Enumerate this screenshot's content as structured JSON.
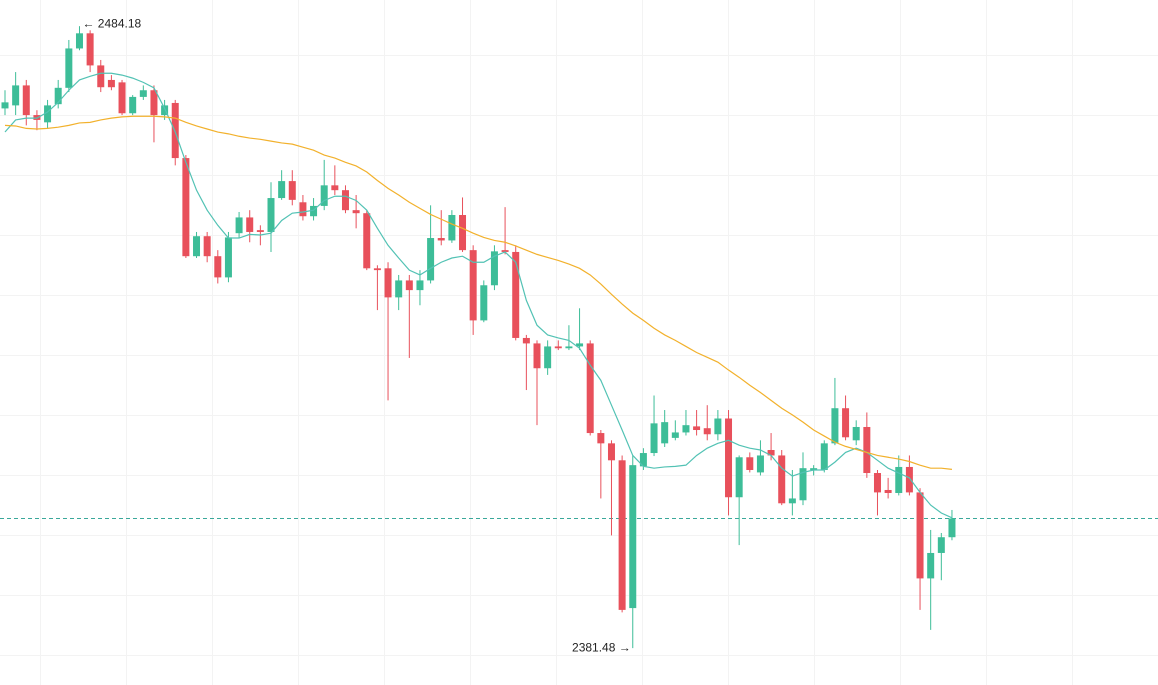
{
  "chart_data": {
    "type": "candlestick",
    "up_color": "#3dbd98",
    "down_color": "#e8505b",
    "ylim": [
      2375.4,
      2488.5
    ],
    "open": [
      2470.6,
      2471.1,
      2474.4,
      2469.5,
      2468.3,
      2471.3,
      2474.0,
      2480.5,
      2483.0,
      2477.7,
      2475.3,
      2474.9,
      2469.8,
      2472.5,
      2473.6,
      2469.5,
      2471.5,
      2462.4,
      2446.2,
      2449.5,
      2446.2,
      2442.7,
      2450.0,
      2452.6,
      2450.5,
      2450.2,
      2455.8,
      2458.6,
      2455.1,
      2452.8,
      2454.5,
      2457.9,
      2457.1,
      2453.8,
      2453.3,
      2444.2,
      2444.2,
      2439.4,
      2442.2,
      2440.6,
      2442.2,
      2449.2,
      2448.8,
      2453.0,
      2447.2,
      2435.6,
      2441.4,
      2447.2,
      2446.9,
      2432.7,
      2431.8,
      2427.7,
      2431.3,
      2431.0,
      2431.3,
      2431.8,
      2417.0,
      2415.3,
      2412.5,
      2388.1,
      2411.5,
      2413.7,
      2415.3,
      2416.2,
      2417.1,
      2418.1,
      2417.8,
      2416.8,
      2419.4,
      2406.4,
      2413.0,
      2410.5,
      2414.2,
      2413.3,
      2405.4,
      2405.9,
      2410.9,
      2410.9,
      2415.3,
      2421.1,
      2415.8,
      2418.0,
      2410.4,
      2407.6,
      2407.1,
      2411.4,
      2407.2,
      2393.0,
      2397.2,
      2399.8
    ],
    "high": [
      2473.6,
      2476.6,
      2475.3,
      2470.3,
      2472.0,
      2475.3,
      2481.9,
      2484.18,
      2483.5,
      2478.6,
      2476.1,
      2475.3,
      2472.8,
      2474.4,
      2474.4,
      2472.0,
      2472.0,
      2462.9,
      2450.2,
      2450.2,
      2447.2,
      2450.2,
      2453.5,
      2453.8,
      2451.3,
      2458.4,
      2460.4,
      2460.4,
      2456.3,
      2455.8,
      2462.1,
      2461.2,
      2457.9,
      2456.3,
      2453.8,
      2444.7,
      2445.2,
      2443.1,
      2443.1,
      2443.9,
      2454.6,
      2453.8,
      2453.8,
      2455.9,
      2448.0,
      2442.2,
      2448.0,
      2454.3,
      2448.0,
      2433.2,
      2432.3,
      2432.3,
      2432.3,
      2434.8,
      2437.6,
      2432.3,
      2417.5,
      2415.8,
      2413.3,
      2413.3,
      2414.5,
      2423.2,
      2420.8,
      2419.1,
      2420.8,
      2420.8,
      2421.6,
      2420.8,
      2420.8,
      2413.3,
      2413.8,
      2415.8,
      2417.0,
      2414.2,
      2410.9,
      2413.8,
      2411.7,
      2415.8,
      2426.1,
      2423.2,
      2419.1,
      2420.4,
      2410.9,
      2409.6,
      2413.3,
      2413.3,
      2407.9,
      2401.0,
      2400.5,
      2404.3
    ],
    "low": [
      2469.5,
      2469.5,
      2467.8,
      2467.0,
      2467.3,
      2470.6,
      2473.3,
      2480.2,
      2476.6,
      2473.3,
      2473.6,
      2469.5,
      2469.5,
      2472.0,
      2465.0,
      2468.7,
      2461.2,
      2445.9,
      2445.9,
      2445.2,
      2441.7,
      2441.9,
      2449.2,
      2448.5,
      2448.0,
      2446.9,
      2455.5,
      2454.6,
      2452.1,
      2452.1,
      2453.8,
      2456.3,
      2453.3,
      2450.8,
      2443.9,
      2437.3,
      2422.4,
      2437.3,
      2429.4,
      2438.1,
      2441.7,
      2448.0,
      2448.4,
      2446.9,
      2433.2,
      2435.3,
      2440.6,
      2446.5,
      2432.3,
      2424.1,
      2418.3,
      2426.6,
      2430.7,
      2430.7,
      2430.7,
      2416.6,
      2406.2,
      2400.1,
      2387.4,
      2381.48,
      2410.9,
      2413.2,
      2414.7,
      2415.8,
      2416.6,
      2416.6,
      2415.8,
      2415.8,
      2403.4,
      2398.5,
      2410.5,
      2410.0,
      2412.5,
      2405.1,
      2403.4,
      2405.1,
      2410.0,
      2410.5,
      2415.0,
      2415.8,
      2415.0,
      2409.6,
      2403.4,
      2406.2,
      2406.7,
      2406.7,
      2387.8,
      2384.5,
      2392.7,
      2399.3
    ],
    "close": [
      2471.6,
      2474.4,
      2469.5,
      2468.7,
      2471.1,
      2474.0,
      2480.5,
      2483.0,
      2477.7,
      2474.1,
      2474.1,
      2469.8,
      2472.5,
      2473.6,
      2469.5,
      2471.1,
      2462.4,
      2446.2,
      2449.5,
      2446.2,
      2442.7,
      2449.3,
      2452.6,
      2450.2,
      2450.2,
      2455.8,
      2458.6,
      2455.5,
      2452.8,
      2454.5,
      2457.9,
      2457.1,
      2453.8,
      2453.3,
      2444.2,
      2443.9,
      2439.4,
      2442.2,
      2440.6,
      2442.2,
      2449.2,
      2448.8,
      2453.0,
      2447.2,
      2435.6,
      2441.4,
      2447.0,
      2446.9,
      2432.7,
      2431.8,
      2427.7,
      2431.3,
      2431.0,
      2431.3,
      2431.8,
      2417.0,
      2415.3,
      2412.5,
      2387.8,
      2411.7,
      2413.7,
      2418.6,
      2418.8,
      2417.1,
      2418.3,
      2417.5,
      2416.8,
      2419.4,
      2406.4,
      2413.0,
      2410.9,
      2413.3,
      2413.3,
      2405.4,
      2406.2,
      2411.2,
      2411.2,
      2415.3,
      2421.1,
      2416.3,
      2418.0,
      2410.4,
      2407.2,
      2407.1,
      2411.4,
      2407.2,
      2393.0,
      2397.2,
      2399.8,
      2402.9
    ],
    "lines": [
      {
        "color": "#52c2b4",
        "values": [
          2466.7,
          2468.7,
          2469.0,
          2469.0,
          2470.0,
          2471.6,
          2473.6,
          2475.3,
          2475.9,
          2476.4,
          2476.4,
          2476.1,
          2475.6,
          2474.9,
          2474.0,
          2470.6,
          2466.7,
          2461.7,
          2457.1,
          2453.8,
          2451.3,
          2449.2,
          2449.2,
          2449.8,
          2449.7,
          2450.0,
          2452.1,
          2453.3,
          2453.5,
          2453.8,
          2455.4,
          2456.1,
          2456.1,
          2455.4,
          2453.8,
          2450.8,
          2448.0,
          2445.9,
          2443.9,
          2443.1,
          2444.2,
          2445.2,
          2445.9,
          2446.2,
          2445.2,
          2445.2,
          2446.2,
          2446.9,
          2445.2,
          2438.9,
          2434.8,
          2433.2,
          2432.7,
          2432.3,
          2431.0,
          2428.2,
          2425.7,
          2421.6,
          2417.5,
          2413.3,
          2411.5,
          2411.2,
          2411.4,
          2411.5,
          2411.7,
          2413.3,
          2414.5,
          2415.3,
          2415.8,
          2415.0,
          2414.5,
          2414.2,
          2413.3,
          2411.2,
          2409.9,
          2410.5,
          2410.9,
          2410.9,
          2412.2,
          2413.8,
          2414.5,
          2413.8,
          2412.5,
          2411.2,
          2410.4,
          2409.6,
          2407.2,
          2405.1,
          2403.8,
          2403.0
        ]
      },
      {
        "color": "#f2b12c",
        "values": [
          2467.8,
          2467.7,
          2467.3,
          2467.2,
          2467.3,
          2467.5,
          2467.8,
          2468.2,
          2468.3,
          2468.7,
          2469.0,
          2469.2,
          2469.3,
          2469.3,
          2469.3,
          2469.2,
          2469.0,
          2468.3,
          2467.7,
          2467.2,
          2466.7,
          2466.4,
          2466.0,
          2465.7,
          2465.5,
          2465.2,
          2464.9,
          2464.7,
          2464.2,
          2463.7,
          2462.9,
          2462.4,
          2461.7,
          2461.1,
          2460.1,
          2458.7,
          2457.4,
          2456.3,
          2455.1,
          2454.1,
          2453.1,
          2452.3,
          2451.5,
          2450.8,
          2450.0,
          2449.3,
          2448.8,
          2448.5,
          2447.9,
          2447.2,
          2446.5,
          2446.0,
          2445.5,
          2444.9,
          2444.2,
          2443.1,
          2441.6,
          2439.9,
          2438.3,
          2436.8,
          2435.6,
          2434.3,
          2433.2,
          2432.3,
          2431.3,
          2430.3,
          2429.5,
          2428.7,
          2427.4,
          2426.2,
          2424.9,
          2423.7,
          2422.4,
          2421.1,
          2420.0,
          2418.8,
          2417.5,
          2416.5,
          2415.5,
          2414.8,
          2414.3,
          2413.8,
          2413.3,
          2413.0,
          2412.7,
          2412.3,
          2411.7,
          2411.2,
          2411.2,
          2411.0
        ]
      }
    ],
    "last_price_line": true,
    "high_label": "← 2484.18",
    "low_label": "2381.48 →"
  }
}
